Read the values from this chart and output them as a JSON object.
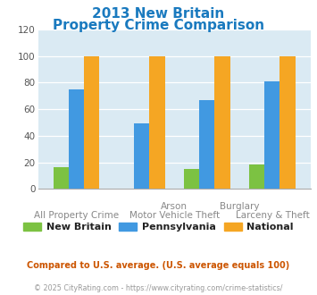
{
  "title_line1": "2013 New Britain",
  "title_line2": "Property Crime Comparison",
  "title_color": "#1a7abf",
  "new_britain": [
    16,
    0,
    15,
    18
  ],
  "pennsylvania": [
    75,
    49,
    67,
    81
  ],
  "national": [
    100,
    100,
    100,
    100
  ],
  "colors": {
    "new_britain": "#7cc242",
    "pennsylvania": "#4199e1",
    "national": "#f5a623"
  },
  "ylim": [
    0,
    120
  ],
  "yticks": [
    0,
    20,
    40,
    60,
    80,
    100,
    120
  ],
  "plot_bg": "#daeaf3",
  "legend_labels": [
    "New Britain",
    "Pennsylvania",
    "National"
  ],
  "top_xlabel_1": "Arson",
  "top_xlabel_2": "Burglary",
  "bot_xlabel_0": "All Property Crime",
  "bot_xlabel_1": "Motor Vehicle Theft",
  "bot_xlabel_3": "Larceny & Theft",
  "footnote1": "Compared to U.S. average. (U.S. average equals 100)",
  "footnote2": "© 2025 CityRating.com - https://www.cityrating.com/crime-statistics/",
  "footnote1_color": "#cc5500",
  "footnote2_color": "#999999",
  "label_color": "#888888"
}
